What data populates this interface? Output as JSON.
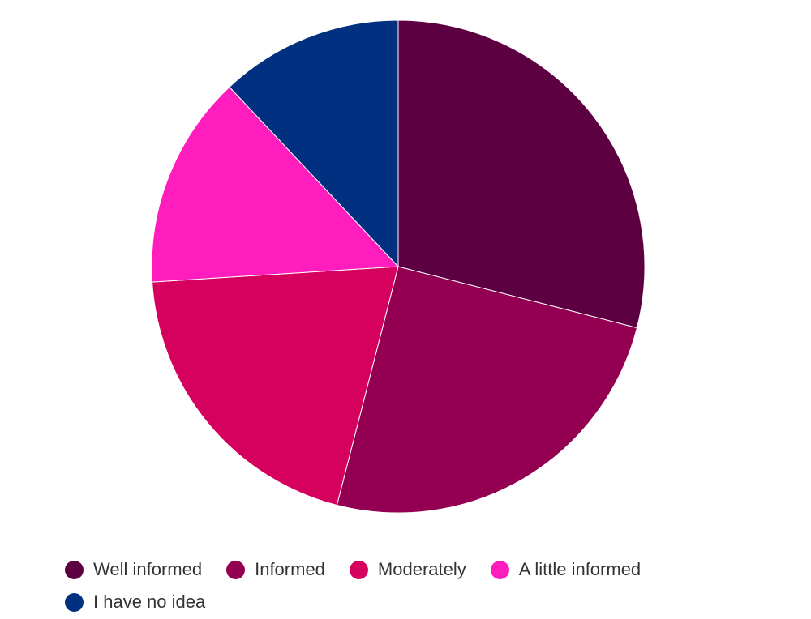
{
  "chart_data": {
    "type": "pie",
    "title": "",
    "series": [
      {
        "categories": [
          "Well informed",
          "Informed",
          "Moderately",
          "A little informed",
          "I have no idea"
        ],
        "values": [
          29,
          25,
          20,
          14,
          12
        ],
        "colors": [
          "#5c0042",
          "#930052",
          "#d6005f",
          "#ff1ebd",
          "#00307f"
        ]
      }
    ],
    "legend": {
      "position": "bottom",
      "labels": [
        "Well informed",
        "Informed",
        "Moderately",
        "A little informed",
        "I have no idea"
      ]
    }
  }
}
